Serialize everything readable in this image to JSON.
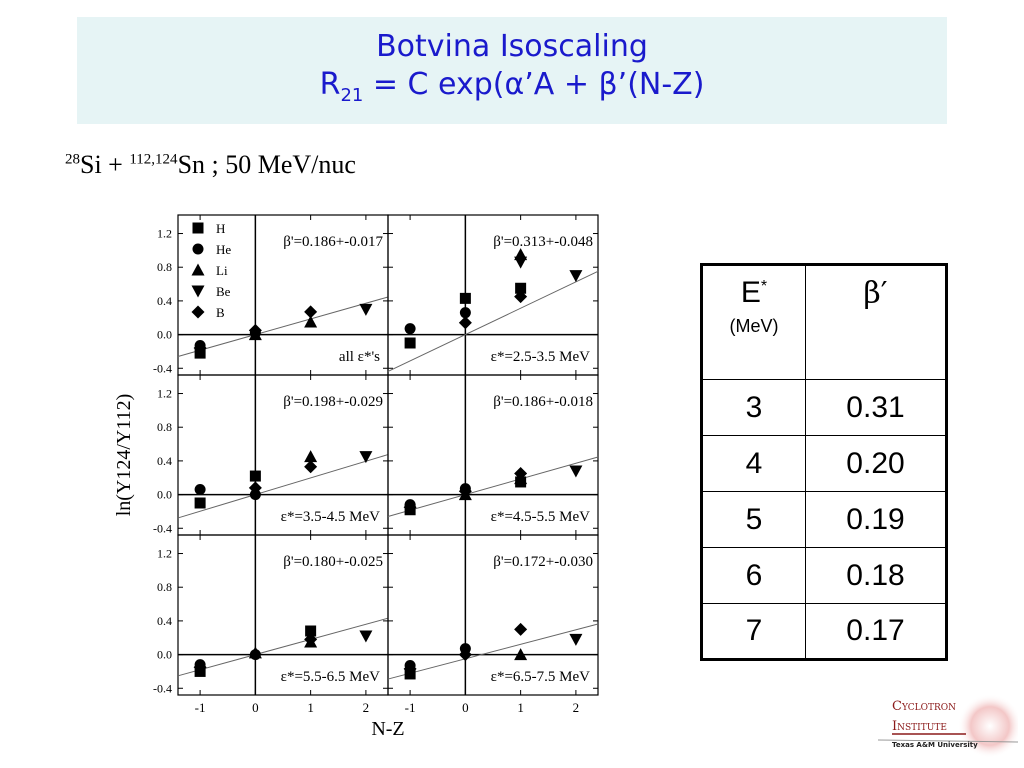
{
  "title": {
    "line1": "Botvina Isoscaling",
    "line2_prefix": "R",
    "line2_sub": "21",
    "line2_rest": " = C exp(α’A + β’(N-Z)"
  },
  "subtitle": {
    "a1": "28",
    "e1": "Si + ",
    "a2": "112,124",
    "e2": "Sn ; 50 MeV/nuc"
  },
  "chart_data": {
    "type": "scatter",
    "xlabel": "N-Z",
    "ylabel": "ln(Y124/Y112)",
    "xlim": [
      -1.4,
      2.4
    ],
    "ylim": [
      -0.48,
      1.42
    ],
    "x_ticks": [
      "-1",
      "0",
      "1",
      "2"
    ],
    "y_ticks": [
      "-0.4",
      "0.0",
      "0.4",
      "0.8",
      "1.2"
    ],
    "grid": false,
    "legend": {
      "placement": "top-left of first panel",
      "entries": [
        {
          "name": "H",
          "marker": "square"
        },
        {
          "name": "He",
          "marker": "circle"
        },
        {
          "name": "Li",
          "marker": "triangle-up"
        },
        {
          "name": "Be",
          "marker": "triangle-down"
        },
        {
          "name": "B",
          "marker": "diamond"
        }
      ]
    },
    "panels": [
      {
        "beta_label": "β'=0.186+-0.017",
        "energy_label": "all ε*'s",
        "fit": {
          "slope": 0.186,
          "intercept": 0.0
        },
        "series": [
          {
            "name": "H",
            "points": [
              [
                -1,
                -0.22
              ]
            ]
          },
          {
            "name": "He",
            "points": [
              [
                -1,
                -0.13
              ],
              [
                0,
                0.02
              ]
            ]
          },
          {
            "name": "Li",
            "points": [
              [
                0,
                0.0
              ],
              [
                1,
                0.15
              ]
            ]
          },
          {
            "name": "Be",
            "points": [
              [
                2,
                0.3
              ]
            ]
          },
          {
            "name": "B",
            "points": [
              [
                -1,
                -0.16
              ],
              [
                0,
                0.05
              ],
              [
                1,
                0.27
              ]
            ]
          }
        ]
      },
      {
        "beta_label": "β'=0.313+-0.048",
        "energy_label": "ε*=2.5-3.5 MeV",
        "fit": {
          "slope": 0.313,
          "intercept": 0.0
        },
        "series": [
          {
            "name": "H",
            "points": [
              [
                -1,
                -0.1
              ],
              [
                0,
                0.43
              ],
              [
                1,
                0.55
              ]
            ]
          },
          {
            "name": "He",
            "points": [
              [
                -1,
                0.07
              ],
              [
                0,
                0.26
              ]
            ]
          },
          {
            "name": "Li",
            "points": [
              [
                1,
                0.95
              ]
            ]
          },
          {
            "name": "Be",
            "points": [
              [
                1,
                0.86
              ],
              [
                2,
                0.7
              ]
            ]
          },
          {
            "name": "B",
            "points": [
              [
                0,
                0.14
              ],
              [
                1,
                0.45
              ]
            ]
          }
        ]
      },
      {
        "beta_label": "β'=0.198+-0.029",
        "energy_label": "ε*=3.5-4.5 MeV",
        "fit": {
          "slope": 0.198,
          "intercept": 0.0
        },
        "series": [
          {
            "name": "H",
            "points": [
              [
                -1,
                -0.1
              ],
              [
                0,
                0.22
              ]
            ]
          },
          {
            "name": "He",
            "points": [
              [
                -1,
                0.06
              ],
              [
                0,
                0.0
              ]
            ]
          },
          {
            "name": "Li",
            "points": [
              [
                1,
                0.45
              ]
            ]
          },
          {
            "name": "Be",
            "points": [
              [
                2,
                0.45
              ]
            ]
          },
          {
            "name": "B",
            "points": [
              [
                0,
                0.08
              ],
              [
                1,
                0.33
              ]
            ]
          }
        ]
      },
      {
        "beta_label": "β'=0.186+-0.018",
        "energy_label": "ε*=4.5-5.5 MeV",
        "fit": {
          "slope": 0.186,
          "intercept": 0.0
        },
        "series": [
          {
            "name": "H",
            "points": [
              [
                -1,
                -0.18
              ],
              [
                1,
                0.15
              ]
            ]
          },
          {
            "name": "He",
            "points": [
              [
                -1,
                -0.12
              ],
              [
                0,
                0.07
              ]
            ]
          },
          {
            "name": "Li",
            "points": [
              [
                0,
                0.0
              ],
              [
                1,
                0.19
              ]
            ]
          },
          {
            "name": "Be",
            "points": [
              [
                2,
                0.28
              ]
            ]
          },
          {
            "name": "B",
            "points": [
              [
                -1,
                -0.15
              ],
              [
                0,
                0.04
              ],
              [
                1,
                0.25
              ]
            ]
          }
        ]
      },
      {
        "beta_label": "β'=0.180+-0.025",
        "energy_label": "ε*=5.5-6.5 MeV",
        "fit": {
          "slope": 0.18,
          "intercept": 0.0
        },
        "series": [
          {
            "name": "H",
            "points": [
              [
                -1,
                -0.2
              ],
              [
                1,
                0.28
              ]
            ]
          },
          {
            "name": "He",
            "points": [
              [
                -1,
                -0.12
              ],
              [
                0,
                0.0
              ]
            ]
          },
          {
            "name": "Li",
            "points": [
              [
                0,
                0.02
              ],
              [
                1,
                0.15
              ]
            ]
          },
          {
            "name": "Be",
            "points": [
              [
                2,
                0.22
              ]
            ]
          },
          {
            "name": "B",
            "points": [
              [
                -1,
                -0.15
              ],
              [
                1,
                0.18
              ]
            ]
          }
        ]
      },
      {
        "beta_label": "β'=0.172+-0.030",
        "energy_label": "ε*=6.5-7.5 MeV",
        "fit": {
          "slope": 0.172,
          "intercept": -0.05
        },
        "series": [
          {
            "name": "H",
            "points": [
              [
                -1,
                -0.23
              ]
            ]
          },
          {
            "name": "He",
            "points": [
              [
                -1,
                -0.13
              ],
              [
                0,
                0.07
              ]
            ]
          },
          {
            "name": "Li",
            "points": [
              [
                1,
                0.0
              ]
            ]
          },
          {
            "name": "Be",
            "points": [
              [
                2,
                0.18
              ]
            ]
          },
          {
            "name": "B",
            "points": [
              [
                -1,
                -0.17
              ],
              [
                0,
                0.0
              ],
              [
                1,
                0.3
              ]
            ]
          }
        ]
      }
    ]
  },
  "table": {
    "header_e": "E",
    "header_e_sup": "*",
    "header_e_unit": "(MeV)",
    "header_beta": "β′",
    "rows": [
      {
        "e": "3",
        "beta": "0.31"
      },
      {
        "e": "4",
        "beta": "0.20"
      },
      {
        "e": "5",
        "beta": "0.19"
      },
      {
        "e": "6",
        "beta": "0.18"
      },
      {
        "e": "7",
        "beta": "0.17"
      }
    ]
  },
  "logo": {
    "line1": "Cyclotron",
    "line2": "Institute",
    "line3": "Texas A&M University",
    "color": "#8b1a1a"
  }
}
